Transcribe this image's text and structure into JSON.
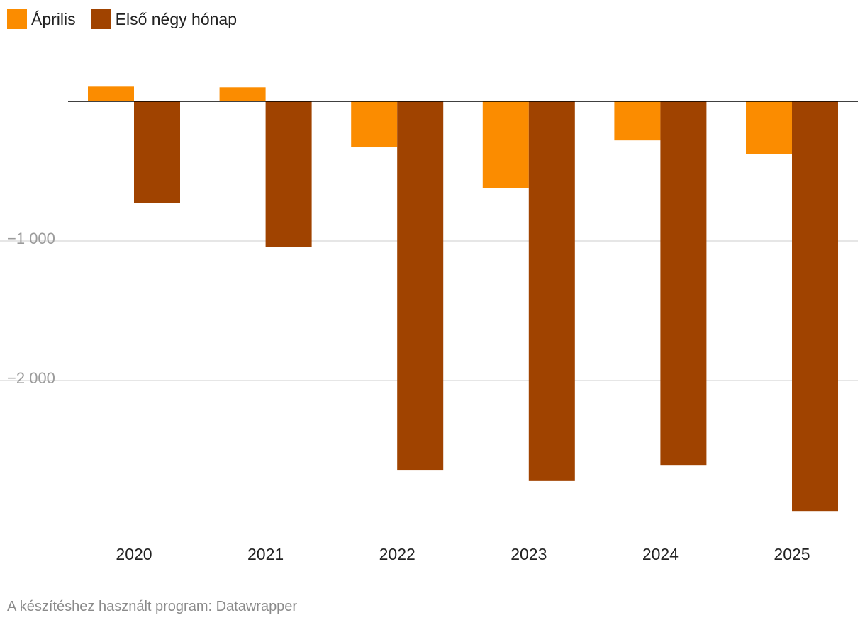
{
  "legend": [
    {
      "label": "Április",
      "color": "#fb8c00"
    },
    {
      "label": "Első négy hónap",
      "color": "#a04300"
    }
  ],
  "footer": {
    "text": "A készítéshez használt program: Datawrapper"
  },
  "colors": {
    "april": "#fb8c00",
    "first_four": "#a04300",
    "grid": "#dddddd",
    "baseline": "#000000",
    "tick_text": "#9b9b9b",
    "category_text": "#222222"
  },
  "chart_data": {
    "type": "bar",
    "categories": [
      "2020",
      "2021",
      "2022",
      "2023",
      "2024",
      "2025"
    ],
    "series": [
      {
        "name": "Április",
        "values": [
          105,
          100,
          -330,
          -620,
          -280,
          -380
        ]
      },
      {
        "name": "Első négy hónap",
        "values": [
          -730,
          -1045,
          -2640,
          -2720,
          -2605,
          -2935
        ]
      }
    ],
    "ylim": [
      -3100,
      320
    ],
    "yticks": [
      -1000,
      -2000
    ],
    "ytick_labels": [
      "−1 000",
      "−2 000"
    ],
    "grid": true,
    "legend_position": "top-left"
  }
}
